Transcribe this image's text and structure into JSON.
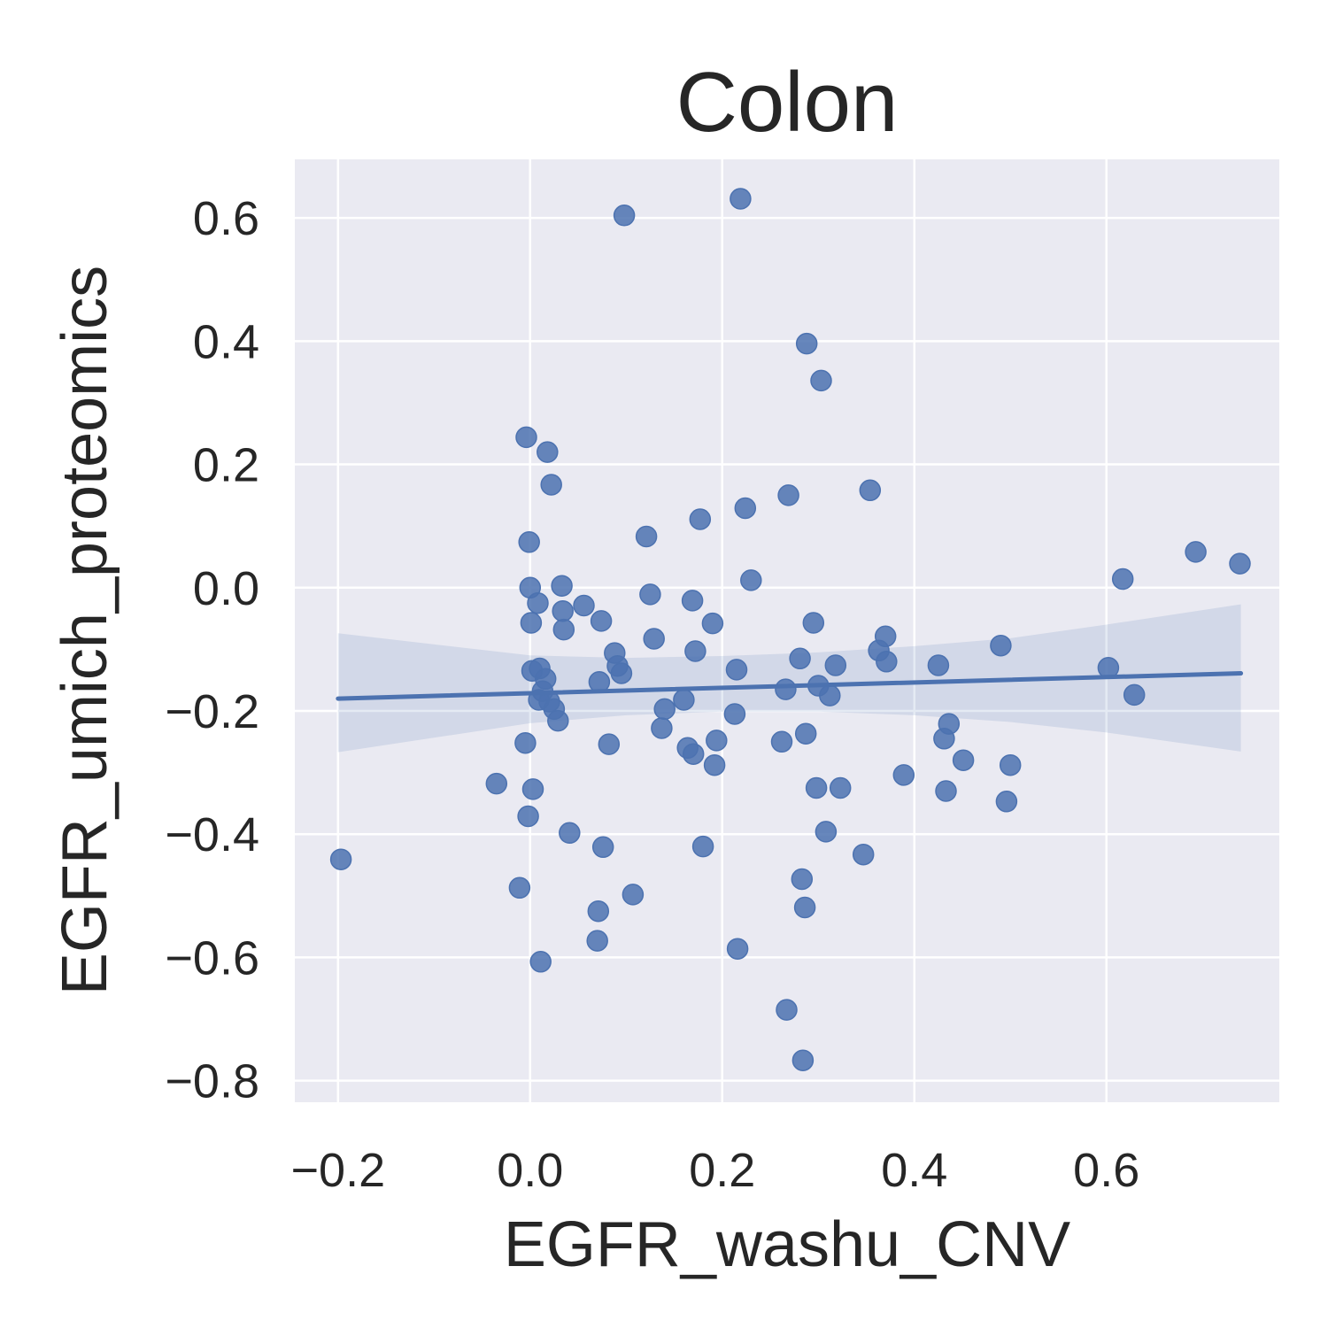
{
  "chart_data": {
    "type": "scatter",
    "title": "Colon",
    "xlabel": "EGFR_washu_CNV",
    "ylabel": "EGFR_umich_proteomics",
    "xlim": [
      -0.245,
      0.78
    ],
    "ylim": [
      -0.835,
      0.695
    ],
    "xticks": [
      -0.2,
      0.0,
      0.2,
      0.4,
      0.6
    ],
    "xtick_labels": [
      "−0.2",
      "0.0",
      "0.2",
      "0.4",
      "0.6"
    ],
    "yticks": [
      -0.8,
      -0.6,
      -0.4,
      -0.2,
      0.0,
      0.2,
      0.4,
      0.6
    ],
    "ytick_labels": [
      "−0.8",
      "−0.6",
      "−0.4",
      "−0.2",
      "0.0",
      "0.2",
      "0.4",
      "0.6"
    ],
    "grid": true,
    "background": "#eaeaf2",
    "point_color": "#4c72b0",
    "points": [
      [
        -0.197,
        -0.441
      ],
      [
        -0.035,
        -0.318
      ],
      [
        -0.011,
        -0.487
      ],
      [
        -0.005,
        -0.252
      ],
      [
        -0.004,
        0.244
      ],
      [
        -0.002,
        -0.371
      ],
      [
        -0.001,
        0.074
      ],
      [
        0.0,
        0.0
      ],
      [
        0.001,
        -0.057
      ],
      [
        0.002,
        -0.135
      ],
      [
        0.003,
        -0.327
      ],
      [
        0.008,
        -0.025
      ],
      [
        0.009,
        -0.182
      ],
      [
        0.01,
        -0.131
      ],
      [
        0.011,
        -0.607
      ],
      [
        0.013,
        -0.168
      ],
      [
        0.016,
        -0.148
      ],
      [
        0.018,
        0.22
      ],
      [
        0.02,
        -0.185
      ],
      [
        0.022,
        0.167
      ],
      [
        0.025,
        -0.197
      ],
      [
        0.029,
        -0.216
      ],
      [
        0.033,
        0.003
      ],
      [
        0.034,
        -0.038
      ],
      [
        0.035,
        -0.068
      ],
      [
        0.041,
        -0.398
      ],
      [
        0.056,
        -0.029
      ],
      [
        0.07,
        -0.573
      ],
      [
        0.071,
        -0.525
      ],
      [
        0.072,
        -0.153
      ],
      [
        0.074,
        -0.054
      ],
      [
        0.076,
        -0.421
      ],
      [
        0.082,
        -0.254
      ],
      [
        0.088,
        -0.106
      ],
      [
        0.091,
        -0.127
      ],
      [
        0.095,
        -0.139
      ],
      [
        0.098,
        0.604
      ],
      [
        0.107,
        -0.498
      ],
      [
        0.121,
        0.083
      ],
      [
        0.125,
        -0.011
      ],
      [
        0.129,
        -0.083
      ],
      [
        0.137,
        -0.228
      ],
      [
        0.14,
        -0.197
      ],
      [
        0.16,
        -0.182
      ],
      [
        0.164,
        -0.26
      ],
      [
        0.169,
        -0.021
      ],
      [
        0.17,
        -0.27
      ],
      [
        0.172,
        -0.103
      ],
      [
        0.177,
        0.111
      ],
      [
        0.18,
        -0.42
      ],
      [
        0.19,
        -0.058
      ],
      [
        0.192,
        -0.288
      ],
      [
        0.194,
        -0.248
      ],
      [
        0.213,
        -0.205
      ],
      [
        0.215,
        -0.133
      ],
      [
        0.216,
        -0.586
      ],
      [
        0.219,
        0.631
      ],
      [
        0.224,
        0.129
      ],
      [
        0.23,
        0.012
      ],
      [
        0.262,
        -0.25
      ],
      [
        0.266,
        -0.165
      ],
      [
        0.267,
        -0.685
      ],
      [
        0.269,
        0.15
      ],
      [
        0.281,
        -0.115
      ],
      [
        0.283,
        -0.473
      ],
      [
        0.284,
        -0.767
      ],
      [
        0.286,
        -0.519
      ],
      [
        0.287,
        -0.237
      ],
      [
        0.288,
        0.396
      ],
      [
        0.295,
        -0.057
      ],
      [
        0.298,
        -0.325
      ],
      [
        0.3,
        -0.159
      ],
      [
        0.303,
        0.336
      ],
      [
        0.308,
        -0.396
      ],
      [
        0.312,
        -0.175
      ],
      [
        0.318,
        -0.126
      ],
      [
        0.323,
        -0.325
      ],
      [
        0.347,
        -0.433
      ],
      [
        0.354,
        0.158
      ],
      [
        0.363,
        -0.102
      ],
      [
        0.37,
        -0.079
      ],
      [
        0.371,
        -0.12
      ],
      [
        0.389,
        -0.304
      ],
      [
        0.425,
        -0.126
      ],
      [
        0.431,
        -0.245
      ],
      [
        0.433,
        -0.33
      ],
      [
        0.436,
        -0.221
      ],
      [
        0.451,
        -0.28
      ],
      [
        0.49,
        -0.094
      ],
      [
        0.496,
        -0.347
      ],
      [
        0.5,
        -0.288
      ],
      [
        0.602,
        -0.13
      ],
      [
        0.617,
        0.014
      ],
      [
        0.629,
        -0.174
      ],
      [
        0.693,
        0.058
      ],
      [
        0.739,
        0.039
      ]
    ],
    "regression": {
      "x_start": -0.2,
      "y_start": -0.18,
      "x_end": 0.74,
      "y_end": -0.139
    },
    "confidence_band": {
      "x": [
        -0.2,
        0.0,
        0.1,
        0.2,
        0.3,
        0.4,
        0.5,
        0.6,
        0.74
      ],
      "upper": [
        -0.074,
        -0.11,
        -0.114,
        -0.111,
        -0.105,
        -0.095,
        -0.082,
        -0.06,
        -0.027
      ],
      "lower": [
        -0.267,
        -0.22,
        -0.207,
        -0.201,
        -0.201,
        -0.207,
        -0.218,
        -0.235,
        -0.266
      ]
    }
  }
}
